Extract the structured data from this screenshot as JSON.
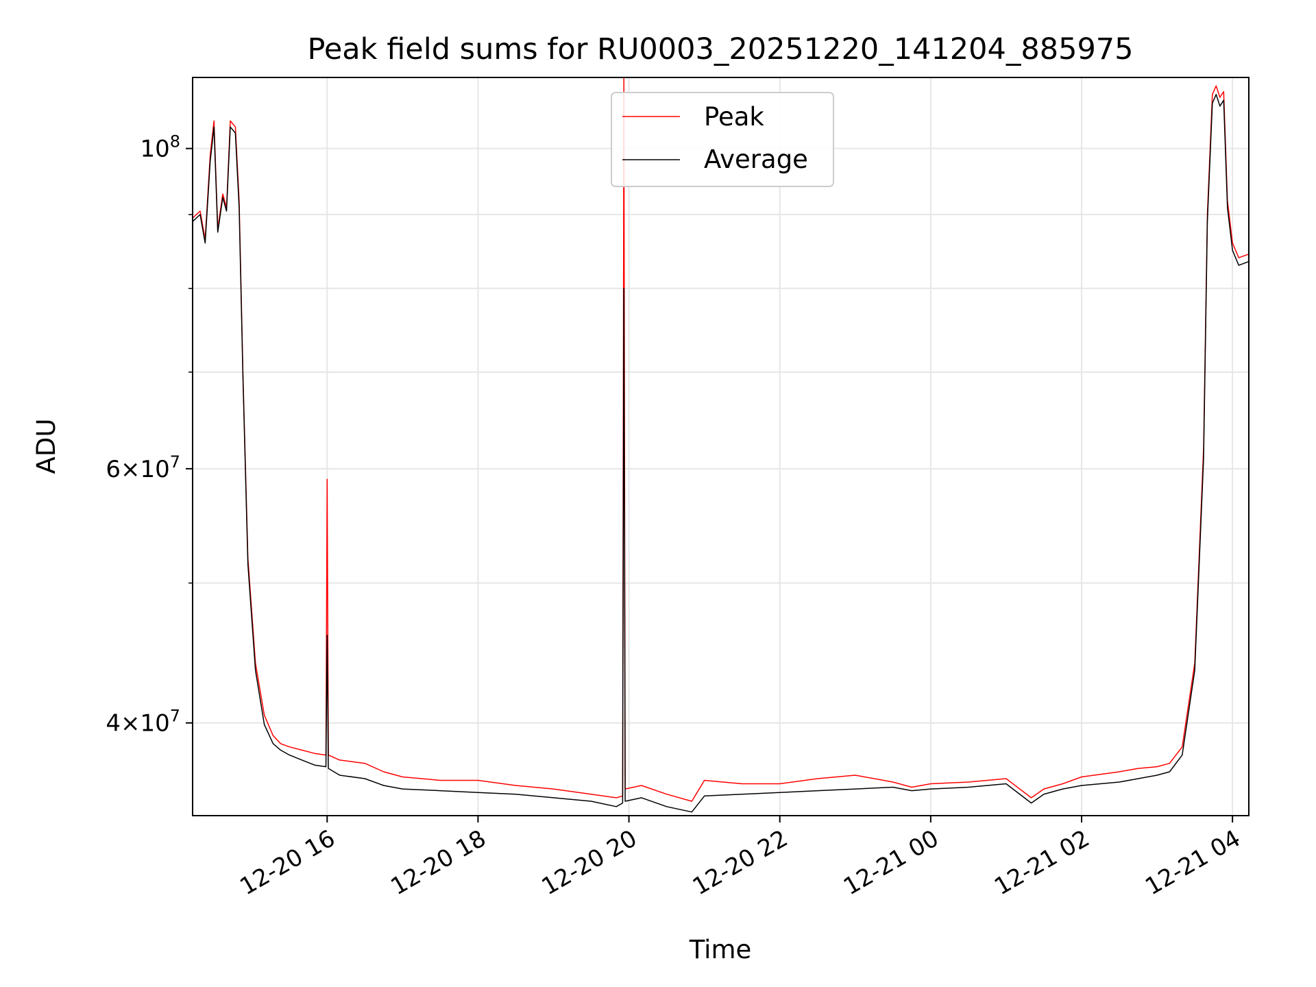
{
  "chart_data": {
    "type": "line",
    "title": "Peak field sums for RU0003_20251220_141204_885975",
    "xlabel": "Time",
    "ylabel": "ADU",
    "y_scale": "log",
    "xlim": [
      "2025-12-20T14:13",
      "2025-12-21T04:13"
    ],
    "ylim": [
      34500000,
      112000000
    ],
    "grid": true,
    "legend_position": "upper center",
    "x_tick_labels": [
      "12-20 16",
      "12-20 18",
      "12-20 20",
      "12-20 22",
      "12-21 00",
      "12-21 02",
      "12-21 04"
    ],
    "x_ticks": [
      "2025-12-20T16:00",
      "2025-12-20T18:00",
      "2025-12-20T20:00",
      "2025-12-20T22:00",
      "2025-12-21T00:00",
      "2025-12-21T02:00",
      "2025-12-21T04:00"
    ],
    "y_tick_labels": [
      {
        "value": 40000000,
        "mantissa": "4",
        "exponent": "7"
      },
      {
        "value": 60000000,
        "mantissa": "6",
        "exponent": "7"
      },
      {
        "value": 100000000,
        "mantissa": "",
        "exponent": "8"
      }
    ],
    "y_minor_ticks": [
      50000000,
      70000000,
      80000000,
      90000000
    ],
    "series": [
      {
        "name": "Peak",
        "color": "#ff0000",
        "x": [
          "2025-12-20T14:13",
          "2025-12-20T14:19",
          "2025-12-20T14:23",
          "2025-12-20T14:27",
          "2025-12-20T14:30",
          "2025-12-20T14:33",
          "2025-12-20T14:37",
          "2025-12-20T14:40",
          "2025-12-20T14:43",
          "2025-12-20T14:47",
          "2025-12-20T14:50",
          "2025-12-20T14:53",
          "2025-12-20T14:57",
          "2025-12-20T15:03",
          "2025-12-20T15:10",
          "2025-12-20T15:17",
          "2025-12-20T15:23",
          "2025-12-20T15:30",
          "2025-12-20T15:40",
          "2025-12-20T15:50",
          "2025-12-20T15:59",
          "2025-12-20T16:00",
          "2025-12-20T16:01",
          "2025-12-20T16:10",
          "2025-12-20T16:30",
          "2025-12-20T16:45",
          "2025-12-20T17:00",
          "2025-12-20T17:30",
          "2025-12-20T18:00",
          "2025-12-20T18:30",
          "2025-12-20T19:00",
          "2025-12-20T19:30",
          "2025-12-20T19:50",
          "2025-12-20T19:55",
          "2025-12-20T19:56",
          "2025-12-20T19:57",
          "2025-12-20T20:10",
          "2025-12-20T20:30",
          "2025-12-20T20:50",
          "2025-12-20T21:00",
          "2025-12-20T21:30",
          "2025-12-20T22:00",
          "2025-12-20T22:30",
          "2025-12-20T23:00",
          "2025-12-20T23:30",
          "2025-12-20T23:45",
          "2025-12-21T00:00",
          "2025-12-21T00:30",
          "2025-12-21T01:00",
          "2025-12-21T01:20",
          "2025-12-21T01:30",
          "2025-12-21T01:45",
          "2025-12-21T02:00",
          "2025-12-21T02:30",
          "2025-12-21T02:45",
          "2025-12-21T03:00",
          "2025-12-21T03:10",
          "2025-12-21T03:20",
          "2025-12-21T03:30",
          "2025-12-21T03:37",
          "2025-12-21T03:40",
          "2025-12-21T03:44",
          "2025-12-21T03:47",
          "2025-12-21T03:50",
          "2025-12-21T03:53",
          "2025-12-21T03:56",
          "2025-12-21T04:00",
          "2025-12-21T04:05",
          "2025-12-21T04:13"
        ],
        "values": [
          89500000,
          90500000,
          86500000,
          99000000,
          104500000,
          88000000,
          93000000,
          91000000,
          104500000,
          103500000,
          92000000,
          70000000,
          52000000,
          44000000,
          40500000,
          39200000,
          38700000,
          38500000,
          38300000,
          38100000,
          38000000,
          59000000,
          38000000,
          37700000,
          37500000,
          37000000,
          36700000,
          36500000,
          36500000,
          36200000,
          36000000,
          35700000,
          35500000,
          35600000,
          112000000,
          36000000,
          36200000,
          35700000,
          35300000,
          36500000,
          36300000,
          36300000,
          36600000,
          36800000,
          36400000,
          36100000,
          36300000,
          36400000,
          36600000,
          35500000,
          36000000,
          36300000,
          36700000,
          37000000,
          37200000,
          37300000,
          37500000,
          38500000,
          44000000,
          62000000,
          90000000,
          109000000,
          110500000,
          108500000,
          109500000,
          92000000,
          86000000,
          84000000,
          84500000
        ]
      },
      {
        "name": "Average",
        "color": "#000000",
        "x": [
          "2025-12-20T14:13",
          "2025-12-20T14:19",
          "2025-12-20T14:23",
          "2025-12-20T14:27",
          "2025-12-20T14:30",
          "2025-12-20T14:33",
          "2025-12-20T14:37",
          "2025-12-20T14:40",
          "2025-12-20T14:43",
          "2025-12-20T14:47",
          "2025-12-20T14:50",
          "2025-12-20T14:53",
          "2025-12-20T14:57",
          "2025-12-20T15:03",
          "2025-12-20T15:10",
          "2025-12-20T15:17",
          "2025-12-20T15:23",
          "2025-12-20T15:30",
          "2025-12-20T15:40",
          "2025-12-20T15:50",
          "2025-12-20T15:59",
          "2025-12-20T16:00",
          "2025-12-20T16:01",
          "2025-12-20T16:10",
          "2025-12-20T16:30",
          "2025-12-20T16:45",
          "2025-12-20T17:00",
          "2025-12-20T17:30",
          "2025-12-20T18:00",
          "2025-12-20T18:30",
          "2025-12-20T19:00",
          "2025-12-20T19:30",
          "2025-12-20T19:50",
          "2025-12-20T19:55",
          "2025-12-20T19:56",
          "2025-12-20T19:57",
          "2025-12-20T20:10",
          "2025-12-20T20:30",
          "2025-12-20T20:50",
          "2025-12-20T21:00",
          "2025-12-20T21:30",
          "2025-12-20T22:00",
          "2025-12-20T22:30",
          "2025-12-20T23:00",
          "2025-12-20T23:30",
          "2025-12-20T23:45",
          "2025-12-21T00:00",
          "2025-12-21T00:30",
          "2025-12-21T01:00",
          "2025-12-21T01:20",
          "2025-12-21T01:30",
          "2025-12-21T01:45",
          "2025-12-21T02:00",
          "2025-12-21T02:30",
          "2025-12-21T02:45",
          "2025-12-21T03:00",
          "2025-12-21T03:10",
          "2025-12-21T03:20",
          "2025-12-21T03:30",
          "2025-12-21T03:37",
          "2025-12-21T03:40",
          "2025-12-21T03:44",
          "2025-12-21T03:47",
          "2025-12-21T03:50",
          "2025-12-21T03:53",
          "2025-12-21T03:56",
          "2025-12-21T04:00",
          "2025-12-21T04:05",
          "2025-12-21T04:13"
        ],
        "values": [
          89000000,
          90000000,
          86000000,
          98000000,
          103500000,
          87500000,
          92500000,
          90500000,
          103500000,
          102500000,
          91000000,
          69500000,
          51500000,
          43500000,
          39900000,
          38700000,
          38300000,
          38000000,
          37700000,
          37400000,
          37300000,
          46000000,
          37200000,
          36800000,
          36600000,
          36200000,
          36000000,
          35900000,
          35800000,
          35700000,
          35500000,
          35300000,
          35000000,
          35200000,
          80000000,
          35300000,
          35500000,
          35000000,
          34700000,
          35600000,
          35700000,
          35800000,
          35900000,
          36000000,
          36100000,
          35900000,
          36000000,
          36100000,
          36300000,
          35200000,
          35700000,
          36000000,
          36200000,
          36400000,
          36600000,
          36800000,
          37000000,
          38000000,
          43500000,
          61000000,
          89000000,
          107500000,
          109000000,
          107000000,
          108000000,
          91000000,
          85000000,
          83000000,
          83500000
        ]
      }
    ]
  }
}
